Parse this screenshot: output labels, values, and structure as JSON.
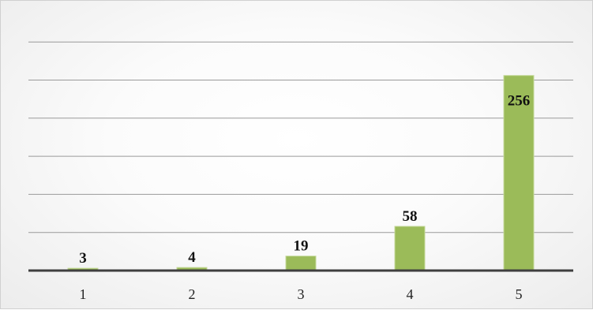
{
  "chart_data": {
    "type": "bar",
    "title": "",
    "xlabel": "",
    "ylabel": "",
    "categories": [
      "1",
      "2",
      "3",
      "4",
      "5"
    ],
    "values": [
      3,
      4,
      19,
      58,
      256
    ],
    "data_labels": [
      "3",
      "4",
      "19",
      "58",
      "256"
    ],
    "ylim": [
      0,
      300
    ],
    "grid": true,
    "legend": "none",
    "colors": {
      "bar": "#9bbb59",
      "bar_edge": "#c5d99a",
      "axis": "#3f3f3f",
      "grid": "#9a9a9a"
    }
  }
}
